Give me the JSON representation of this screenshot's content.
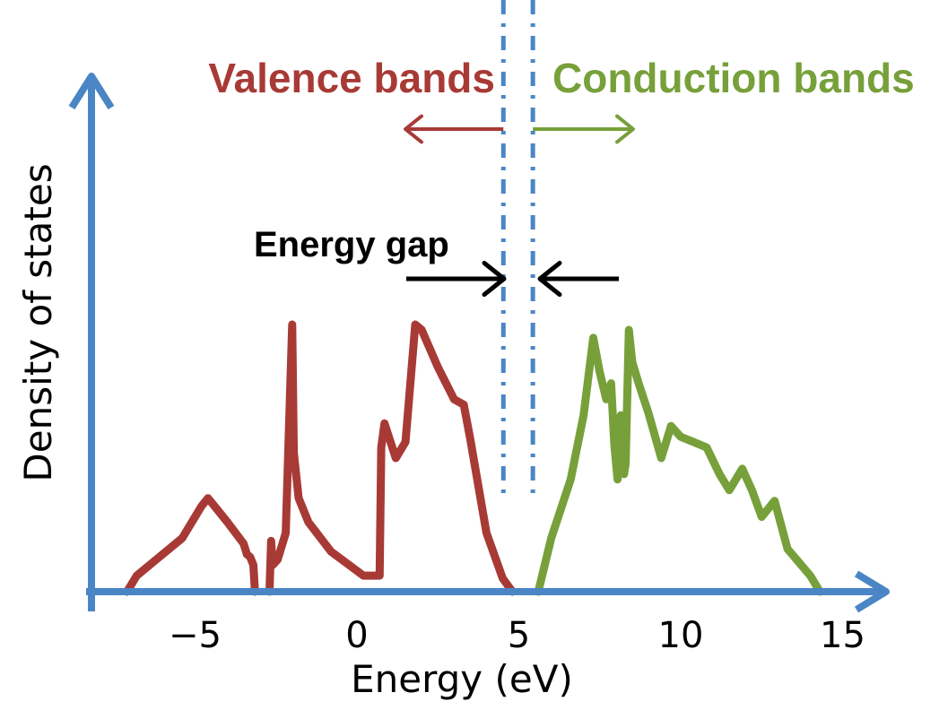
{
  "chart_data": {
    "type": "line",
    "title": "",
    "xlabel": "Energy (eV)",
    "ylabel": "Density of states",
    "xlim": [
      -7.5,
      15.5
    ],
    "ylim": [
      0,
      1.0
    ],
    "x_ticks": [
      -5,
      0,
      5,
      10,
      15
    ],
    "x_tick_labels": [
      "−5",
      "0",
      "5",
      "10",
      "15"
    ],
    "grid": false,
    "colors": {
      "axis": "#4A86C5",
      "valence": "#A83A36",
      "conduction": "#77A03A",
      "gap_lines": "#4A86C5",
      "gap_arrows": "#000000"
    },
    "gap": {
      "valence_edge": 4.8,
      "conduction_edge": 5.6
    },
    "annotations": {
      "valence_label": "Valence bands",
      "conduction_label": "Conduction bands",
      "gap_label": "Energy gap"
    },
    "series": [
      {
        "name": "Valence bands",
        "color": "#A83A36",
        "x": [
          -7.1,
          -6.8,
          -6.2,
          -5.4,
          -4.8,
          -4.6,
          -4.4,
          -4.0,
          -3.5,
          -3.4,
          -3.3,
          -3.2,
          -3.15,
          -2.7,
          -2.65,
          -2.6,
          -2.45,
          -2.2,
          -2.0,
          -1.95,
          -1.8,
          -1.5,
          -0.8,
          0.2,
          0.7,
          0.75,
          0.85,
          1.2,
          1.5,
          1.8,
          2.0,
          2.5,
          3.0,
          3.3,
          3.5,
          4.0,
          4.5,
          4.8
        ],
        "y": [
          0.0,
          0.06,
          0.12,
          0.2,
          0.32,
          0.35,
          0.32,
          0.26,
          0.18,
          0.14,
          0.13,
          0.1,
          0.0,
          0.0,
          0.19,
          0.1,
          0.12,
          0.22,
          1.0,
          0.52,
          0.35,
          0.26,
          0.15,
          0.06,
          0.06,
          0.54,
          0.63,
          0.5,
          0.56,
          1.0,
          0.98,
          0.84,
          0.72,
          0.7,
          0.57,
          0.22,
          0.05,
          0.0
        ],
        "area_segments": [
          [
            -7.1,
            -3.15
          ],
          [
            -2.7,
            4.8
          ]
        ]
      },
      {
        "name": "Conduction bands",
        "color": "#77A03A",
        "x": [
          5.6,
          6.0,
          6.6,
          7.0,
          7.3,
          7.5,
          7.7,
          7.85,
          7.95,
          8.05,
          8.15,
          8.25,
          8.3,
          8.4,
          8.5,
          8.7,
          9.0,
          9.4,
          9.7,
          10.0,
          10.4,
          10.8,
          11.2,
          11.5,
          11.9,
          12.2,
          12.5,
          12.9,
          13.3,
          14.0,
          14.3
        ],
        "y": [
          0.0,
          0.2,
          0.42,
          0.66,
          0.95,
          0.82,
          0.72,
          0.78,
          0.55,
          0.42,
          0.66,
          0.44,
          0.48,
          0.98,
          0.86,
          0.78,
          0.67,
          0.5,
          0.62,
          0.58,
          0.56,
          0.54,
          0.44,
          0.38,
          0.46,
          0.38,
          0.28,
          0.34,
          0.16,
          0.06,
          0.0
        ]
      }
    ]
  }
}
